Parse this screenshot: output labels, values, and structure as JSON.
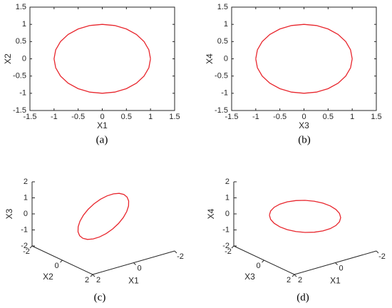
{
  "chart_data": [
    {
      "type": "line",
      "caption": "(a)",
      "xlabel": "X1",
      "ylabel": "X2",
      "xlim": [
        -1.5,
        1.5
      ],
      "ylim": [
        -1.5,
        1.5
      ],
      "xticks": [
        -1.5,
        -1,
        -0.5,
        0,
        0.5,
        1,
        1.5
      ],
      "yticks": [
        -1.5,
        -1,
        -0.5,
        0,
        0.5,
        1,
        1.5
      ],
      "color": "#e8262d",
      "x": [
        1,
        0.966,
        0.866,
        0.707,
        0.5,
        0.259,
        0,
        -0.259,
        -0.5,
        -0.707,
        -0.866,
        -0.966,
        -1,
        -0.966,
        -0.866,
        -0.707,
        -0.5,
        -0.259,
        0,
        0.259,
        0.5,
        0.707,
        0.866,
        0.966,
        1
      ],
      "y": [
        0,
        0.259,
        0.5,
        0.707,
        0.866,
        0.966,
        1,
        0.966,
        0.866,
        0.707,
        0.5,
        0.259,
        0,
        -0.259,
        -0.5,
        -0.707,
        -0.866,
        -0.966,
        -1,
        -0.966,
        -0.866,
        -0.707,
        -0.5,
        -0.259,
        0
      ]
    },
    {
      "type": "line",
      "caption": "(b)",
      "xlabel": "X3",
      "ylabel": "X4",
      "xlim": [
        -1.5,
        1.5
      ],
      "ylim": [
        -1.5,
        1.5
      ],
      "xticks": [
        -1.5,
        -1,
        -0.5,
        0,
        0.5,
        1,
        1.5
      ],
      "yticks": [
        -1.5,
        -1,
        -0.5,
        0,
        0.5,
        1,
        1.5
      ],
      "color": "#e8262d",
      "x": [
        -1,
        -0.966,
        -0.866,
        -0.707,
        -0.5,
        -0.259,
        0,
        0.259,
        0.5,
        0.707,
        0.866,
        0.966,
        1,
        0.966,
        0.866,
        0.707,
        0.5,
        0.259,
        0,
        -0.259,
        -0.5,
        -0.707,
        -0.866,
        -0.966,
        -1
      ],
      "y": [
        0,
        0.259,
        0.5,
        0.707,
        0.866,
        0.966,
        1,
        0.966,
        0.866,
        0.707,
        0.5,
        0.259,
        0,
        -0.259,
        -0.5,
        -0.707,
        -0.866,
        -0.966,
        -1,
        -0.966,
        -0.866,
        -0.707,
        -0.5,
        -0.259,
        0
      ]
    },
    {
      "type": "line3d",
      "caption": "(c)",
      "xlabel": "X1",
      "ylabel": "X2",
      "zlabel": "X3",
      "xlim": [
        -2,
        2
      ],
      "ylim": [
        -2,
        2
      ],
      "zlim": [
        -2,
        2
      ],
      "xticks": [
        -2,
        0,
        2
      ],
      "yticks": [
        -2,
        0,
        2
      ],
      "zticks": [
        -2,
        -1,
        0,
        1,
        2
      ],
      "color": "#e8262d",
      "x": [
        1,
        0.966,
        0.866,
        0.707,
        0.5,
        0.259,
        0,
        -0.259,
        -0.5,
        -0.707,
        -0.866,
        -0.966,
        -1,
        -0.966,
        -0.866,
        -0.707,
        -0.5,
        -0.259,
        0,
        0.259,
        0.5,
        0.707,
        0.866,
        0.966,
        1
      ],
      "y": [
        0,
        0.259,
        0.5,
        0.707,
        0.866,
        0.966,
        1,
        0.966,
        0.866,
        0.707,
        0.5,
        0.259,
        0,
        -0.259,
        -0.5,
        -0.707,
        -0.866,
        -0.966,
        -1,
        -0.966,
        -0.866,
        -0.707,
        -0.5,
        -0.259,
        0
      ],
      "z": [
        -1,
        -0.966,
        -0.866,
        -0.707,
        -0.5,
        -0.259,
        0,
        0.259,
        0.5,
        0.707,
        0.866,
        0.966,
        1,
        0.966,
        0.866,
        0.707,
        0.5,
        0.259,
        0,
        -0.259,
        -0.5,
        -0.707,
        -0.866,
        -0.966,
        -1
      ]
    },
    {
      "type": "line3d",
      "caption": "(d)",
      "xlabel": "X1",
      "ylabel": "X3",
      "zlabel": "X4",
      "xlim": [
        -2,
        2
      ],
      "ylim": [
        -2,
        2
      ],
      "zlim": [
        -2,
        2
      ],
      "xticks": [
        -2,
        0,
        2
      ],
      "yticks": [
        -2,
        0,
        2
      ],
      "zticks": [
        -2,
        -1,
        0,
        1,
        2
      ],
      "color": "#e8262d",
      "x": [
        1,
        0.966,
        0.866,
        0.707,
        0.5,
        0.259,
        0,
        -0.259,
        -0.5,
        -0.707,
        -0.866,
        -0.966,
        -1,
        -0.966,
        -0.866,
        -0.707,
        -0.5,
        -0.259,
        0,
        0.259,
        0.5,
        0.707,
        0.866,
        0.966,
        1
      ],
      "y": [
        -1,
        -0.966,
        -0.866,
        -0.707,
        -0.5,
        -0.259,
        0,
        0.259,
        0.5,
        0.707,
        0.866,
        0.966,
        1,
        0.966,
        0.866,
        0.707,
        0.5,
        0.259,
        0,
        -0.259,
        -0.5,
        -0.707,
        -0.866,
        -0.966,
        -1
      ],
      "z": [
        0,
        0.259,
        0.5,
        0.707,
        0.866,
        0.966,
        1,
        0.966,
        0.866,
        0.707,
        0.5,
        0.259,
        0,
        -0.259,
        -0.5,
        -0.707,
        -0.866,
        -0.966,
        -1,
        -0.966,
        -0.866,
        -0.707,
        -0.5,
        -0.259,
        0
      ]
    }
  ]
}
